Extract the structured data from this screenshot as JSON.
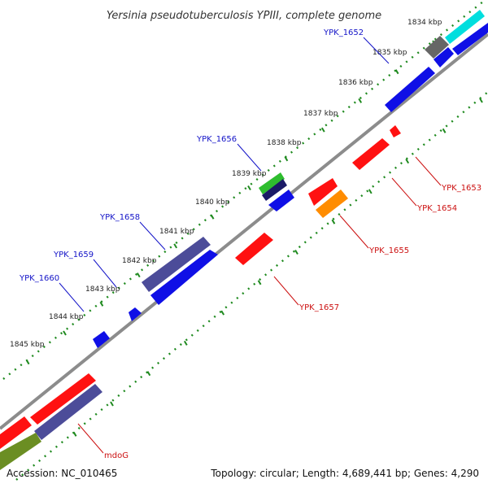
{
  "title": "Yersinia pseudotuberculosis YPIII, complete genome",
  "accession_text": "Accession: NC_010465",
  "summary_text": "Topology: circular; Length: 4,689,441 bp; Genes: 4,290",
  "colors": {
    "backbone": "#8c8c8c",
    "tick": "#1f8a1f",
    "label_blue": "#1414c8",
    "label_red": "#cc1111"
  },
  "ticks": [
    {
      "label": "1834 kbp"
    },
    {
      "label": "1835 kbp"
    },
    {
      "label": "1836 kbp"
    },
    {
      "label": "1837 kbp"
    },
    {
      "label": "1838 kbp"
    },
    {
      "label": "1839 kbp"
    },
    {
      "label": "1840 kbp"
    },
    {
      "label": "1841 kbp"
    },
    {
      "label": "1842 kbp"
    },
    {
      "label": "1843 kbp"
    },
    {
      "label": "1844 kbp"
    },
    {
      "label": "1845 kbp"
    }
  ],
  "gene_labels": [
    {
      "text": "YPK_1652",
      "strand": "forward"
    },
    {
      "text": "YPK_1653",
      "strand": "reverse"
    },
    {
      "text": "YPK_1654",
      "strand": "reverse"
    },
    {
      "text": "YPK_1655",
      "strand": "reverse"
    },
    {
      "text": "YPK_1656",
      "strand": "forward"
    },
    {
      "text": "YPK_1657",
      "strand": "reverse"
    },
    {
      "text": "YPK_1658",
      "strand": "forward"
    },
    {
      "text": "YPK_1659",
      "strand": "forward"
    },
    {
      "text": "YPK_1660",
      "strand": "forward"
    },
    {
      "text": "mdoG",
      "strand": "reverse"
    }
  ]
}
